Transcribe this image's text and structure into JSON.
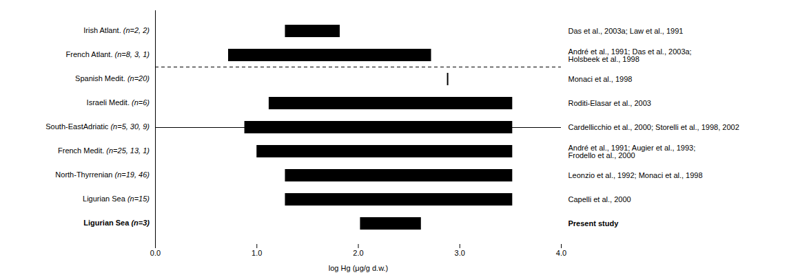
{
  "chart_data": {
    "type": "bar",
    "orientation": "horizontal",
    "categories": [
      "Irish Atlant.",
      "French Atlant.",
      "Spanish Medit.",
      "Israeli Medit.",
      "South-EastAdriatic",
      "French Medit.",
      "North-Thyrrenian",
      "Ligurian Sea",
      "Ligurian Sea"
    ],
    "category_notes": [
      "(n=2, 2)",
      "(n=8, 3, 1)",
      "(n=20)",
      "(n=6)",
      "(n=5, 30, 9)",
      "(n=25, 13, 1)",
      "(n=19, 46)",
      "(n=15)",
      "(n=3)"
    ],
    "start": [
      1.28,
      0.72,
      null,
      1.12,
      0.88,
      1.0,
      1.28,
      1.28,
      2.02
    ],
    "end": [
      1.82,
      2.72,
      null,
      3.52,
      3.52,
      3.52,
      3.52,
      3.52,
      2.62
    ],
    "point": [
      null,
      null,
      2.88,
      null,
      null,
      null,
      null,
      null,
      null
    ],
    "bold": [
      false,
      false,
      false,
      false,
      false,
      false,
      false,
      false,
      true
    ],
    "references": [
      [
        "Das et al., 2003a; Law et al., 1991"
      ],
      [
        "André et al., 1991; Das et al., 2003a;",
        "Holsbeek et al., 1998"
      ],
      [
        "Monaci et al., 1998"
      ],
      [
        "Roditi-Elasar et al., 2003"
      ],
      [
        "Cardellicchio et al., 2000; Storelli et al., 1998, 2002"
      ],
      [
        "André et al., 1991; Augier et al., 1993;",
        "Frodello et al., 2000"
      ],
      [
        "Leonzio et al., 1992; Monaci et al., 1998"
      ],
      [
        "Capelli et al., 2000"
      ],
      [
        "Present study"
      ]
    ],
    "references_bold": [
      false,
      false,
      false,
      false,
      false,
      false,
      false,
      false,
      true
    ],
    "separator_after": 1,
    "xlabel": "log Hg (μg/g d.w.)",
    "xlim": [
      0,
      4
    ],
    "xticks": [
      0,
      1,
      2,
      3,
      4
    ],
    "color": "#000000"
  }
}
